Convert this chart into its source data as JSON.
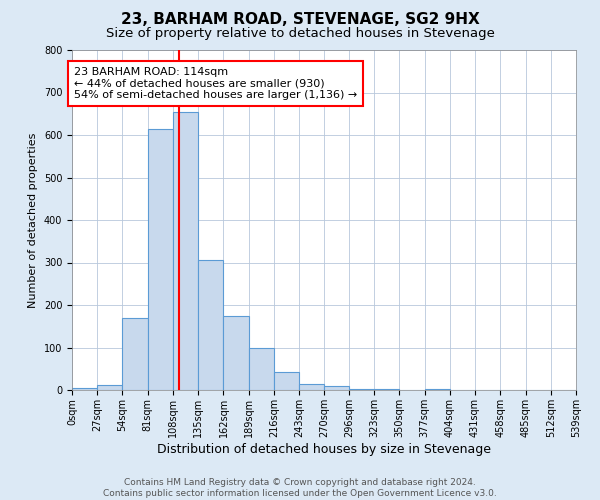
{
  "title": "23, BARHAM ROAD, STEVENAGE, SG2 9HX",
  "subtitle": "Size of property relative to detached houses in Stevenage",
  "xlabel": "Distribution of detached houses by size in Stevenage",
  "ylabel": "Number of detached properties",
  "bin_edges": [
    0,
    27,
    54,
    81,
    108,
    135,
    162,
    189,
    216,
    243,
    270,
    296,
    323,
    350,
    377,
    404,
    431,
    458,
    485,
    512,
    539
  ],
  "bin_counts": [
    5,
    12,
    170,
    615,
    655,
    305,
    175,
    98,
    42,
    15,
    10,
    3,
    2,
    0,
    2,
    0,
    0,
    0,
    0,
    0
  ],
  "bar_facecolor": "#c8d9ed",
  "bar_edgecolor": "#5b9bd5",
  "vline_x": 114,
  "vline_color": "red",
  "annotation_text": "23 BARHAM ROAD: 114sqm\n← 44% of detached houses are smaller (930)\n54% of semi-detached houses are larger (1,136) →",
  "annotation_box_color": "white",
  "annotation_box_edgecolor": "red",
  "ylim": [
    0,
    800
  ],
  "yticks": [
    0,
    100,
    200,
    300,
    400,
    500,
    600,
    700,
    800
  ],
  "background_color": "#dce9f5",
  "plot_bg_color": "white",
  "footer_line1": "Contains HM Land Registry data © Crown copyright and database right 2024.",
  "footer_line2": "Contains public sector information licensed under the Open Government Licence v3.0.",
  "title_fontsize": 11,
  "subtitle_fontsize": 9.5,
  "xlabel_fontsize": 9,
  "ylabel_fontsize": 8,
  "tick_fontsize": 7,
  "annotation_fontsize": 8,
  "footer_fontsize": 6.5
}
